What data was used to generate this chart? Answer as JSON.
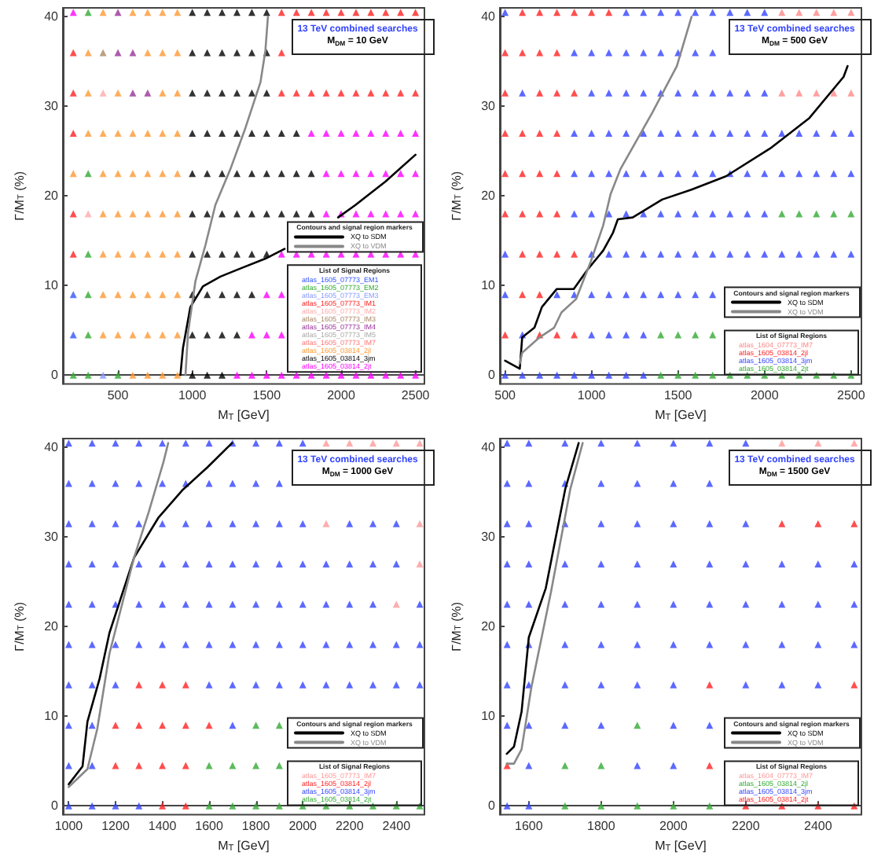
{
  "chart_data": [
    {
      "type": "scatter",
      "title": "13 TeV combined searches",
      "subtitle": "M$_{DM}$ = 10 GeV",
      "xlabel": "M$_{T}$ [GeV]",
      "ylabel": "Γ/M$_{T}$ (%)",
      "legend_title": "Contours and signal region markers",
      "annotations": [
        "List of Signal Regions"
      ],
      "legend": "bottom right",
      "marker": "triangle",
      "xlim": [
        130,
        2560
      ],
      "ylim": [
        -1,
        41
      ],
      "xticks": [
        500,
        1000,
        1500,
        2000,
        2500
      ],
      "yticks": [
        0,
        10,
        20,
        30,
        40
      ],
      "series": [
        {
          "name": "atlas_1605_07773_EM1",
          "color": "#3355ff",
          "x": [
            200,
            200
          ],
          "values": [
            9,
            4.5
          ]
        },
        {
          "name": "atlas_1605_07773_EM2",
          "color": "#33aa33",
          "x": [
            300,
            300,
            300,
            300,
            300,
            200,
            300,
            500
          ],
          "values": [
            40.5,
            22.5,
            13.5,
            9,
            4.5,
            0,
            0,
            0
          ]
        },
        {
          "name": "atlas_1605_07773_EM3",
          "color": "#8899ff",
          "x": [
            400
          ],
          "values": [
            0
          ]
        },
        {
          "name": "atlas_1605_07773_IM1",
          "color": "#ff2222",
          "x": [
            1600,
            1700,
            1800,
            1900,
            2000,
            2100,
            2200,
            2300,
            2400,
            2500,
            200,
            1600,
            200,
            1600,
            1700,
            1800,
            1900,
            2000,
            2100,
            2200,
            2300,
            2400,
            2500,
            200,
            200,
            200
          ],
          "values": [
            40.5,
            40.5,
            40.5,
            40.5,
            40.5,
            40.5,
            40.5,
            40.5,
            40.5,
            40.5,
            36,
            36,
            31.5,
            31.5,
            31.5,
            31.5,
            31.5,
            31.5,
            31.5,
            31.5,
            31.5,
            31.5,
            31.5,
            27,
            18,
            13.5
          ]
        },
        {
          "name": "atlas_1605_07773_IM2",
          "color": "#ffaaaa",
          "x": [
            400,
            300
          ],
          "values": [
            31.5,
            18
          ]
        },
        {
          "name": "atlas_1605_07773_IM3",
          "color": "#aa8866",
          "x": [
            400
          ],
          "values": [
            36
          ]
        },
        {
          "name": "atlas_1605_07773_IM4",
          "color": "#993399",
          "x": [
            500,
            500,
            600,
            600,
            700
          ],
          "values": [
            40.5,
            36,
            36,
            31.5,
            31.5
          ]
        },
        {
          "name": "atlas_1605_07773_IM5",
          "color": "#aaaaaa"
        },
        {
          "name": "atlas_1605_07773_IM7",
          "color": "#ff7777"
        },
        {
          "name": "atlas_1605_03814_2jl",
          "color": "#ff9933",
          "x": [
            400,
            600,
            700,
            800,
            900,
            300,
            700,
            800,
            900,
            300,
            500,
            800,
            900,
            300,
            400,
            500,
            600,
            700,
            800,
            900,
            200,
            400,
            500,
            600,
            700,
            800,
            900,
            400,
            500,
            600,
            700,
            800,
            900,
            400,
            500,
            600,
            700,
            800,
            900,
            400,
            500,
            600,
            700,
            800,
            900,
            400,
            500,
            600,
            700,
            800,
            900,
            600,
            700,
            800,
            900
          ],
          "values": [
            40.5,
            40.5,
            40.5,
            40.5,
            40.5,
            36,
            36,
            36,
            36,
            31.5,
            31.5,
            31.5,
            31.5,
            27,
            27,
            27,
            27,
            27,
            27,
            27,
            22.5,
            22.5,
            22.5,
            22.5,
            22.5,
            22.5,
            22.5,
            18,
            18,
            18,
            18,
            18,
            18,
            13.5,
            13.5,
            13.5,
            13.5,
            13.5,
            13.5,
            9,
            9,
            9,
            9,
            9,
            9,
            4.5,
            4.5,
            4.5,
            4.5,
            4.5,
            4.5,
            0,
            0,
            0,
            0
          ]
        },
        {
          "name": "atlas_1605_03814_3jm",
          "color": "#000000",
          "x": [
            1000,
            1100,
            1200,
            1300,
            1400,
            1500,
            1000,
            1100,
            1200,
            1300,
            1400,
            1500,
            1000,
            1100,
            1200,
            1300,
            1400,
            1500,
            1000,
            1100,
            1200,
            1300,
            1400,
            1500,
            1600,
            1700,
            1000,
            1100,
            1200,
            1300,
            1400,
            1500,
            1600,
            1700,
            1800,
            1000,
            1100,
            1200,
            1300,
            1400,
            1500,
            1600,
            1700,
            1800,
            1000,
            1100,
            1200,
            1300,
            1400,
            1500,
            1000,
            1100,
            1200,
            1300,
            1400,
            1000,
            1100,
            1200,
            1300,
            1000,
            1100,
            1200
          ],
          "values": [
            40.5,
            40.5,
            40.5,
            40.5,
            40.5,
            40.5,
            36,
            36,
            36,
            36,
            36,
            36,
            31.5,
            31.5,
            31.5,
            31.5,
            31.5,
            31.5,
            27,
            27,
            27,
            27,
            27,
            27,
            27,
            27,
            22.5,
            22.5,
            22.5,
            22.5,
            22.5,
            22.5,
            22.5,
            22.5,
            22.5,
            18,
            18,
            18,
            18,
            18,
            18,
            18,
            18,
            18,
            13.5,
            13.5,
            13.5,
            13.5,
            13.5,
            13.5,
            9,
            9,
            9,
            9,
            9,
            4.5,
            4.5,
            4.5,
            4.5,
            0,
            0,
            0
          ]
        },
        {
          "name": "atlas_1605_03814_2jt",
          "color": "#ff00ff",
          "x": [
            200,
            1800,
            1900,
            2000,
            2100,
            2200,
            2300,
            2400,
            2500,
            1900,
            2000,
            2100,
            2200,
            2300,
            2400,
            2500,
            1900,
            2000,
            2100,
            2200,
            2300,
            2400,
            2500,
            1600,
            1700,
            1800,
            1900,
            2000,
            2100,
            2200,
            2300,
            2400,
            2500,
            1500,
            1600,
            1400,
            1500,
            1600,
            1300,
            1400,
            1500,
            1600,
            1700,
            1800,
            1900,
            2000,
            2100,
            2200,
            2300,
            2400,
            2500
          ],
          "values": [
            40.5,
            27,
            27,
            27,
            27,
            27,
            27,
            27,
            27,
            22.5,
            22.5,
            22.5,
            22.5,
            22.5,
            22.5,
            22.5,
            18,
            18,
            18,
            18,
            18,
            18,
            18,
            13.5,
            13.5,
            13.5,
            13.5,
            13.5,
            13.5,
            13.5,
            13.5,
            13.5,
            13.5,
            9,
            9,
            4.5,
            4.5,
            4.5,
            0,
            0,
            0,
            0,
            0,
            0,
            0,
            0,
            0,
            0,
            0,
            0,
            0
          ]
        },
        {
          "name": "XQ to SDM",
          "type": "line",
          "marker": "none",
          "color": "#000000",
          "x": [
            920,
            937,
            987,
            1071,
            1189,
            1323,
            1491,
            1620,
            1800,
            1980,
            2097,
            2298,
            2500
          ],
          "values": [
            0,
            3,
            7.6,
            9.9,
            11,
            11.9,
            13,
            14.1,
            null,
            17.6,
            19,
            21.6,
            24.6
          ]
        },
        {
          "name": "XQ to VDM",
          "type": "line",
          "marker": "none",
          "color": "#888888",
          "x": [
            954,
            971,
            1021,
            1088,
            1155,
            1256,
            1357,
            1458,
            1491,
            1508
          ],
          "values": [
            0,
            4.7,
            10.5,
            14.5,
            19,
            23,
            27.6,
            32.7,
            36.2,
            40
          ]
        }
      ]
    },
    {
      "type": "scatter",
      "title": "13 TeV combined searches",
      "subtitle": "M$_{DM}$ = 500 GeV",
      "xlabel": "M$_{T}$ [GeV]",
      "ylabel": "Γ/M$_{T}$ (%)",
      "legend_title": "Contours and signal region markers",
      "annotations": [
        "List of Signal Regions"
      ],
      "legend": "bottom right",
      "marker": "triangle",
      "xlim": [
        470,
        2560
      ],
      "ylim": [
        -1,
        41
      ],
      "xticks": [
        500,
        1000,
        1500,
        2000,
        2500
      ],
      "yticks": [
        0,
        10,
        20,
        30,
        40
      ],
      "series": [
        {
          "name": "atlas_1604_07773_IM7",
          "color": "#ff8888",
          "x": [
            2100,
            2200,
            2300,
            2400,
            2500,
            2100,
            2200,
            2300,
            2400,
            2500
          ],
          "values": [
            40.5,
            40.5,
            40.5,
            40.5,
            40.5,
            31.5,
            31.5,
            31.5,
            31.5,
            31.5
          ]
        },
        {
          "name": "atlas_1605_03814_2jl",
          "color": "#ff2222",
          "x": [
            600,
            700,
            800,
            900,
            1000,
            1100,
            500,
            600,
            700,
            800,
            500,
            700,
            800,
            900,
            500,
            600,
            700,
            800,
            500,
            600,
            700,
            800,
            500,
            600,
            700,
            800,
            600,
            700,
            800,
            900,
            600,
            700,
            500,
            700,
            800,
            900
          ],
          "values": [
            40.5,
            40.5,
            40.5,
            40.5,
            40.5,
            40.5,
            36,
            36,
            36,
            36,
            31.5,
            31.5,
            31.5,
            31.5,
            27,
            27,
            27,
            27,
            22.5,
            22.5,
            22.5,
            22.5,
            18,
            18,
            18,
            18,
            13.5,
            13.5,
            13.5,
            13.5,
            9,
            9,
            4.5,
            4.5,
            4.5,
            4.5
          ]
        },
        {
          "name": "atlas_1605_03814_3jm",
          "color": "#3344ff",
          "x": [
            500,
            1200,
            1300,
            1400,
            1500,
            1600,
            1700,
            1800,
            1900,
            2000,
            900,
            1000,
            1100,
            1200,
            1300,
            1400,
            1500,
            1600,
            1700,
            600,
            1000,
            1100,
            1200,
            1300,
            1400,
            1500,
            1600,
            1700,
            1800,
            1900,
            2000,
            900,
            1000,
            1100,
            1200,
            1300,
            1400,
            1500,
            1600,
            1700,
            1800,
            1900,
            2000,
            2100,
            2200,
            2300,
            2400,
            2500,
            900,
            1000,
            1100,
            1200,
            1300,
            1400,
            1500,
            1600,
            1700,
            1800,
            1900,
            2000,
            2100,
            2200,
            2300,
            2400,
            2500,
            900,
            1000,
            1100,
            1200,
            1300,
            1400,
            1500,
            1600,
            1700,
            1800,
            1900,
            2000,
            500,
            1000,
            1100,
            1200,
            1300,
            1400,
            1500,
            1600,
            1700,
            1800,
            1900,
            2000,
            2100,
            2200,
            2300,
            2400,
            2500,
            500,
            800,
            900,
            1000,
            1100,
            1200,
            1300,
            1400,
            1500,
            1600,
            1700,
            600,
            1000,
            1100,
            1200,
            1300,
            500,
            600,
            700,
            800,
            900,
            1000,
            1100,
            1200,
            1300
          ],
          "values": [
            40.5,
            40.5,
            40.5,
            40.5,
            40.5,
            40.5,
            40.5,
            40.5,
            40.5,
            40.5,
            36,
            36,
            36,
            36,
            36,
            36,
            36,
            36,
            36,
            31.5,
            31.5,
            31.5,
            31.5,
            31.5,
            31.5,
            31.5,
            31.5,
            31.5,
            31.5,
            31.5,
            31.5,
            27,
            27,
            27,
            27,
            27,
            27,
            27,
            27,
            27,
            27,
            27,
            27,
            27,
            27,
            27,
            27,
            27,
            22.5,
            22.5,
            22.5,
            22.5,
            22.5,
            22.5,
            22.5,
            22.5,
            22.5,
            22.5,
            22.5,
            22.5,
            22.5,
            22.5,
            22.5,
            22.5,
            22.5,
            18,
            18,
            18,
            18,
            18,
            18,
            18,
            18,
            18,
            18,
            18,
            18,
            13.5,
            13.5,
            13.5,
            13.5,
            13.5,
            13.5,
            13.5,
            13.5,
            13.5,
            13.5,
            13.5,
            13.5,
            13.5,
            13.5,
            13.5,
            13.5,
            13.5,
            9,
            9,
            9,
            9,
            9,
            9,
            9,
            9,
            9,
            9,
            9,
            4.5,
            4.5,
            4.5,
            4.5,
            4.5,
            0,
            0,
            0,
            0,
            0,
            0,
            0,
            0,
            0
          ]
        },
        {
          "name": "atlas_1605_03814_2jt",
          "color": "#33aa33",
          "x": [
            2100,
            2200,
            2300,
            2400,
            2500,
            1400,
            1500,
            1600,
            1700,
            1400,
            1500,
            1600,
            1700,
            1800,
            1900,
            2000,
            2100,
            2200,
            2300,
            2400,
            2500
          ],
          "values": [
            18,
            18,
            18,
            18,
            18,
            4.5,
            4.5,
            4.5,
            4.5,
            0,
            0,
            0,
            0,
            0,
            0,
            0,
            0,
            0,
            0,
            0,
            0
          ]
        },
        {
          "name": "XQ to SDM",
          "type": "line",
          "marker": "none",
          "color": "#000000",
          "x": [
            500,
            585,
            599,
            670,
            713,
            798,
            897,
            982,
            1067,
            1124,
            1152,
            1238,
            1408,
            1578,
            1777,
            2032,
            2259,
            2457,
            2480
          ],
          "values": [
            1.6,
            0.7,
            4.2,
            5.3,
            7.6,
            9.6,
            9.6,
            11.9,
            13.9,
            15.9,
            17.4,
            17.6,
            19.6,
            20.7,
            22.2,
            25.3,
            28.7,
            33.3,
            34.5
          ]
        },
        {
          "name": "XQ to VDM",
          "type": "line",
          "marker": "none",
          "color": "#888888",
          "x": [
            585,
            599,
            699,
            784,
            826,
            911,
            996,
            1067,
            1110,
            1167,
            1351,
            1493,
            1578
          ],
          "values": [
            1.3,
            2.5,
            4.2,
            5.3,
            7,
            8.5,
            12.7,
            16.7,
            20.2,
            23,
            29.3,
            34.5,
            40
          ]
        }
      ]
    },
    {
      "type": "scatter",
      "title": "13 TeV combined searches",
      "subtitle": "M$_{DM}$ = 1000 GeV",
      "xlabel": "M$_{T}$ [GeV]",
      "ylabel": "Γ/M$_{T}$ (%)",
      "legend_title": "Contours and signal region markers",
      "annotations": [
        "List of Signal Regions"
      ],
      "legend": "bottom right",
      "marker": "triangle",
      "xlim": [
        975,
        2520
      ],
      "ylim": [
        -1,
        41
      ],
      "xticks": [
        1000,
        1200,
        1400,
        1600,
        1800,
        2000,
        2200,
        2400
      ],
      "yticks": [
        0,
        10,
        20,
        30,
        40
      ],
      "series": [
        {
          "name": "atlas_1605_07773_IM7",
          "color": "#ff9999",
          "x": [
            2100,
            2200,
            2300,
            2400,
            2500,
            2100,
            2500,
            2500,
            2400
          ],
          "values": [
            40.5,
            40.5,
            40.5,
            40.5,
            40.5,
            31.5,
            31.5,
            27,
            22.5
          ]
        },
        {
          "name": "atlas_1605_03814_2jl",
          "color": "#ff2222",
          "x": [
            1300,
            1400,
            1500,
            1200,
            1300,
            1400,
            1500,
            1600,
            1200,
            1300,
            1400,
            1500,
            1400,
            1500
          ],
          "values": [
            13.5,
            13.5,
            13.5,
            9,
            9,
            9,
            9,
            9,
            4.5,
            4.5,
            4.5,
            4.5,
            0,
            0
          ]
        },
        {
          "name": "atlas_1605_03814_3jm",
          "color": "#3344ff",
          "x": [
            1000,
            1100,
            1200,
            1300,
            1400,
            1500,
            1600,
            1700,
            1800,
            1900,
            2000,
            1000,
            1100,
            1200,
            1300,
            1400,
            1500,
            1600,
            1700,
            1800,
            1900,
            1000,
            1100,
            1200,
            1300,
            1400,
            1500,
            1600,
            1700,
            1800,
            1900,
            2000,
            2200,
            2300,
            2400,
            1000,
            1100,
            1200,
            1300,
            1400,
            1500,
            1600,
            1700,
            1800,
            1900,
            2000,
            2100,
            2200,
            2300,
            2400,
            1000,
            1100,
            1200,
            1300,
            1400,
            1500,
            1600,
            1700,
            1800,
            1900,
            2000,
            2100,
            2200,
            2300,
            2500,
            1000,
            1100,
            1200,
            1300,
            1400,
            1500,
            1600,
            1700,
            1800,
            1900,
            2000,
            2100,
            2200,
            2300,
            2400,
            2500,
            1000,
            1100,
            1200,
            1600,
            1700,
            1800,
            1900,
            2000,
            2100,
            2200,
            2300,
            2400,
            2500,
            1000,
            1100,
            1700,
            1000,
            1100,
            1000,
            1100,
            1200,
            1300
          ],
          "values": [
            40.5,
            40.5,
            40.5,
            40.5,
            40.5,
            40.5,
            40.5,
            40.5,
            40.5,
            40.5,
            40.5,
            36,
            36,
            36,
            36,
            36,
            36,
            36,
            36,
            36,
            36,
            31.5,
            31.5,
            31.5,
            31.5,
            31.5,
            31.5,
            31.5,
            31.5,
            31.5,
            31.5,
            31.5,
            31.5,
            31.5,
            31.5,
            27,
            27,
            27,
            27,
            27,
            27,
            27,
            27,
            27,
            27,
            27,
            27,
            27,
            27,
            27,
            22.5,
            22.5,
            22.5,
            22.5,
            22.5,
            22.5,
            22.5,
            22.5,
            22.5,
            22.5,
            22.5,
            22.5,
            22.5,
            22.5,
            22.5,
            18,
            18,
            18,
            18,
            18,
            18,
            18,
            18,
            18,
            18,
            18,
            18,
            18,
            18,
            18,
            18,
            13.5,
            13.5,
            13.5,
            13.5,
            13.5,
            13.5,
            13.5,
            13.5,
            13.5,
            13.5,
            13.5,
            13.5,
            13.5,
            9,
            9,
            9,
            4.5,
            4.5,
            0,
            0,
            0,
            0
          ]
        },
        {
          "name": "atlas_1605_03814_2jt",
          "color": "#33aa33",
          "x": [
            1800,
            1900,
            1600,
            1700,
            1800,
            1900,
            1600,
            1700,
            1800,
            1900,
            2000,
            2100,
            2200,
            2300,
            2400,
            2500
          ],
          "values": [
            9,
            9,
            4.5,
            4.5,
            4.5,
            4.5,
            0,
            0,
            0,
            0,
            0,
            0,
            0,
            0,
            0,
            0
          ]
        },
        {
          "name": "XQ to SDM",
          "type": "line",
          "marker": "none",
          "color": "#000000",
          "x": [
            1000,
            1059,
            1080,
            1132,
            1174,
            1279,
            1384,
            1488,
            1593,
            1698
          ],
          "values": [
            2.4,
            4.4,
            9.4,
            14.2,
            19.3,
            27.7,
            32.2,
            35.3,
            37.8,
            40.5
          ]
        },
        {
          "name": "XQ to VDM",
          "type": "line",
          "marker": "none",
          "color": "#888888",
          "x": [
            1000,
            1080,
            1122,
            1174,
            1279,
            1342,
            1405,
            1425
          ],
          "values": [
            2.1,
            4.1,
            8.6,
            17,
            27.7,
            32.8,
            38.4,
            40.5
          ]
        }
      ]
    },
    {
      "type": "scatter",
      "title": "13 TeV combined searches",
      "subtitle": "M$_{DM}$ = 1500 GeV",
      "xlabel": "M$_{T}$ [GeV]",
      "ylabel": "Γ/M$_{T}$ (%)",
      "legend_title": "Contours and signal region markers",
      "annotations": [
        "List of Signal Regions"
      ],
      "legend": "bottom right",
      "marker": "triangle",
      "xlim": [
        1520,
        2520
      ],
      "ylim": [
        -1,
        41
      ],
      "xticks": [
        1600,
        1800,
        2000,
        2200,
        2400
      ],
      "yticks": [
        0,
        10,
        20,
        30,
        40
      ],
      "series": [
        {
          "name": "atlas_1604_07773_IM7",
          "color": "#ff9999",
          "x": [
            2300,
            2400,
            2500
          ],
          "values": [
            40.5,
            40.5,
            40.5
          ]
        },
        {
          "name": "atlas_1605_03814_2jl",
          "color": "#33aa33",
          "x": [
            1900,
            1700,
            1800,
            1700,
            1800,
            1900,
            2000,
            2100
          ],
          "values": [
            9,
            4.5,
            4.5,
            0,
            0,
            0,
            0,
            0
          ]
        },
        {
          "name": "atlas_1605_03814_3jm",
          "color": "#3344ff",
          "x": [
            1540,
            1600,
            1700,
            1800,
            1900,
            2000,
            2100,
            2200,
            1540,
            1600,
            1700,
            1800,
            1900,
            2000,
            2100,
            1540,
            1600,
            1700,
            1800,
            1900,
            2000,
            2100,
            2200,
            1540,
            1600,
            1700,
            1800,
            1900,
            2000,
            2100,
            2200,
            2300,
            2400,
            2500,
            1540,
            1600,
            1700,
            1800,
            1900,
            2000,
            2100,
            2200,
            2300,
            2400,
            2500,
            1540,
            1600,
            1700,
            1800,
            1900,
            2000,
            2100,
            2200,
            2300,
            2400,
            2500,
            1540,
            1600,
            1700,
            1800,
            1900,
            2000,
            2200,
            2300,
            2400,
            1540,
            1600,
            1700,
            1800,
            2000,
            2100,
            1600,
            1900,
            2000,
            1540,
            1600
          ],
          "values": [
            40.5,
            40.5,
            40.5,
            40.5,
            40.5,
            40.5,
            40.5,
            40.5,
            36,
            36,
            36,
            36,
            36,
            36,
            36,
            31.5,
            31.5,
            31.5,
            31.5,
            31.5,
            31.5,
            31.5,
            31.5,
            27,
            27,
            27,
            27,
            27,
            27,
            27,
            27,
            27,
            27,
            27,
            22.5,
            22.5,
            22.5,
            22.5,
            22.5,
            22.5,
            22.5,
            22.5,
            22.5,
            22.5,
            22.5,
            18,
            18,
            18,
            18,
            18,
            18,
            18,
            18,
            18,
            18,
            18,
            13.5,
            13.5,
            13.5,
            13.5,
            13.5,
            13.5,
            13.5,
            13.5,
            13.5,
            9,
            9,
            9,
            9,
            9,
            9,
            4.5,
            4.5,
            4.5,
            0,
            0
          ]
        },
        {
          "name": "atlas_1605_03814_2jt",
          "color": "#ff2222",
          "x": [
            2300,
            2400,
            2500,
            2100,
            2500,
            1540,
            2100,
            2200,
            2300,
            2400,
            2500
          ],
          "values": [
            31.5,
            31.5,
            31.5,
            13.5,
            13.5,
            4.5,
            4.5,
            0,
            0,
            0,
            0
          ]
        },
        {
          "name": "XQ to SDM",
          "type": "line",
          "marker": "none",
          "color": "#000000",
          "x": [
            1539,
            1559,
            1580,
            1600,
            1647,
            1701,
            1738
          ],
          "values": [
            5.8,
            6.6,
            10.5,
            18.8,
            24.3,
            35.4,
            40.5
          ]
        },
        {
          "name": "XQ to VDM",
          "type": "line",
          "marker": "none",
          "color": "#888888",
          "x": [
            1539,
            1559,
            1580,
            1607,
            1661,
            1715,
            1749
          ],
          "values": [
            4.7,
            4.7,
            6.3,
            13.2,
            23.8,
            35.4,
            40.5
          ]
        }
      ]
    }
  ]
}
